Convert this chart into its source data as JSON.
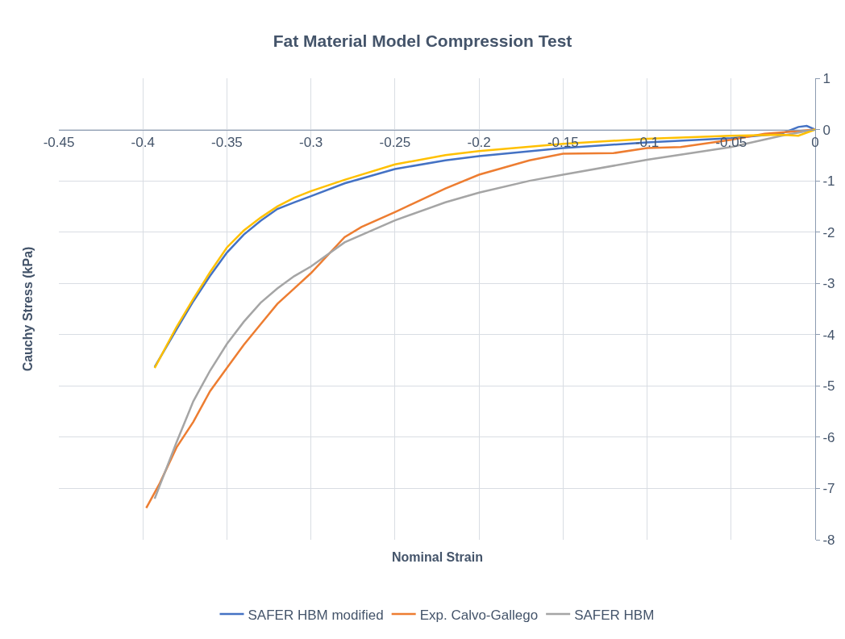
{
  "chart_data": {
    "type": "line",
    "title": "Fat Material Model Compression Test",
    "xlabel": "Nominal Strain",
    "ylabel": "Cauchy Stress (kPa)",
    "xlim": [
      -0.45,
      0
    ],
    "xticks": [
      -0.45,
      -0.4,
      -0.35,
      -0.3,
      -0.25,
      -0.2,
      -0.15,
      -0.1,
      -0.05,
      0
    ],
    "ylim": [
      -8,
      1
    ],
    "yticks": [
      -8,
      -7,
      -6,
      -5,
      -4,
      -3,
      -2,
      -1,
      0,
      1
    ],
    "grid": true,
    "legend": "bottom",
    "marker": "none",
    "line_style": "solid",
    "series": [
      {
        "name": "SAFER HBM modified",
        "color": "#4472c4",
        "x": [
          -0.393,
          -0.38,
          -0.37,
          -0.36,
          -0.35,
          -0.34,
          -0.33,
          -0.32,
          -0.31,
          -0.3,
          -0.28,
          -0.25,
          -0.22,
          -0.2,
          -0.15,
          -0.1,
          -0.05,
          -0.02,
          -0.01,
          -0.005,
          0
        ],
        "values": [
          -4.63,
          -3.9,
          -3.35,
          -2.85,
          -2.4,
          -2.05,
          -1.78,
          -1.55,
          -1.42,
          -1.3,
          -1.05,
          -0.77,
          -0.6,
          -0.52,
          -0.36,
          -0.25,
          -0.17,
          -0.08,
          0.05,
          0.07,
          0
        ]
      },
      {
        "name": "Exp. Calvo-Gallego",
        "color": "#ed7d31",
        "x": [
          -0.398,
          -0.39,
          -0.38,
          -0.37,
          -0.36,
          -0.35,
          -0.34,
          -0.33,
          -0.32,
          -0.31,
          -0.3,
          -0.28,
          -0.27,
          -0.25,
          -0.22,
          -0.2,
          -0.17,
          -0.15,
          -0.12,
          -0.1,
          -0.08,
          -0.05,
          -0.03,
          -0.01,
          0
        ],
        "values": [
          -7.38,
          -6.9,
          -6.2,
          -5.7,
          -5.1,
          -4.65,
          -4.2,
          -3.8,
          -3.4,
          -3.1,
          -2.8,
          -2.1,
          -1.9,
          -1.61,
          -1.15,
          -0.88,
          -0.6,
          -0.47,
          -0.46,
          -0.36,
          -0.34,
          -0.2,
          -0.08,
          -0.03,
          0
        ]
      },
      {
        "name": "SAFER HBM",
        "color": "#a5a5a5",
        "x": [
          -0.393,
          -0.38,
          -0.37,
          -0.36,
          -0.35,
          -0.34,
          -0.33,
          -0.32,
          -0.31,
          -0.3,
          -0.28,
          -0.25,
          -0.22,
          -0.2,
          -0.17,
          -0.15,
          -0.1,
          -0.05,
          -0.02,
          0
        ],
        "values": [
          -7.2,
          -6.1,
          -5.3,
          -4.7,
          -4.18,
          -3.75,
          -3.38,
          -3.1,
          -2.86,
          -2.67,
          -2.2,
          -1.77,
          -1.42,
          -1.23,
          -1.0,
          -0.88,
          -0.59,
          -0.34,
          -0.12,
          0
        ]
      },
      {
        "color": "#ffc000",
        "x": [
          -0.393,
          -0.38,
          -0.37,
          -0.36,
          -0.35,
          -0.34,
          -0.33,
          -0.32,
          -0.31,
          -0.3,
          -0.28,
          -0.25,
          -0.22,
          -0.2,
          -0.15,
          -0.1,
          -0.05,
          -0.02,
          -0.01,
          0
        ],
        "values": [
          -4.65,
          -3.85,
          -3.3,
          -2.78,
          -2.3,
          -1.97,
          -1.72,
          -1.5,
          -1.33,
          -1.2,
          -0.98,
          -0.68,
          -0.5,
          -0.42,
          -0.28,
          -0.18,
          -0.12,
          -0.1,
          -0.12,
          0
        ]
      }
    ]
  }
}
